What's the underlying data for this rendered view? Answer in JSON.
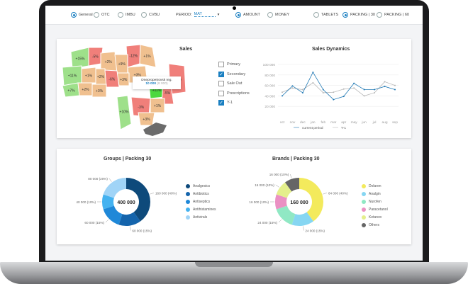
{
  "toolbar": {
    "segments": [
      {
        "label": "General",
        "selected": true
      },
      {
        "label": "OTC",
        "selected": false
      },
      {
        "label": "IMBU",
        "selected": false
      },
      {
        "label": "CVBU",
        "selected": false
      }
    ],
    "period_label": "PERIOD:",
    "period_value": "MAT",
    "measure": [
      {
        "label": "AMOUNT",
        "selected": true
      },
      {
        "label": "MONEY",
        "selected": false
      }
    ],
    "units": [
      {
        "label": "TABLETS",
        "selected": false
      },
      {
        "label": "PACKING | 30",
        "selected": true
      },
      {
        "label": "PACKING | 60",
        "selected": false
      }
    ]
  },
  "map": {
    "title": "Sales",
    "regions": [
      "+15%",
      "-5%",
      "-12%",
      "+1%",
      "+2%",
      "+9%",
      "+11%",
      "+1%",
      "+2%",
      "+3%",
      "+3%",
      "-6%",
      "-15%",
      "+7%",
      "+2%",
      "+3%",
      "+11%",
      "-5%",
      "+10%",
      "-3%",
      "+1%",
      "+3%"
    ],
    "colors": {
      "positive": "#f0c08f",
      "strong_positive": "#9ee08a",
      "highlight": "#4dd83e",
      "negative": "#f07f7a",
      "none": "#6b6b6b"
    },
    "tooltip": {
      "region": "Dnepropetrovsk reg.",
      "value": "10 000",
      "prev": "(8 000)"
    }
  },
  "dynamics": {
    "title": "Sales Dynamics",
    "filters": [
      {
        "label": "Primary",
        "checked": false
      },
      {
        "label": "Secondary",
        "checked": true
      },
      {
        "label": "Sale Out",
        "checked": false
      },
      {
        "label": "Prescriptions",
        "checked": false
      },
      {
        "label": "Y-1",
        "checked": true
      }
    ]
  },
  "chart_data": [
    {
      "type": "line",
      "title": "Sales Dynamics",
      "categories": [
        "oct",
        "nov",
        "dec",
        "jan",
        "feb",
        "mar",
        "apr",
        "may",
        "jun",
        "jul",
        "aug",
        "sep"
      ],
      "ylim": [
        0,
        100000
      ],
      "yticks": [
        "100 000",
        "80 000",
        "60 000",
        "40 000",
        "20 000"
      ],
      "grid": true,
      "legend": "bottom",
      "series": [
        {
          "name": "current period",
          "color": "#1f78b4",
          "values": [
            40000,
            59000,
            46000,
            85000,
            52000,
            33000,
            39000,
            64000,
            52000,
            52000,
            58000,
            52000
          ]
        },
        {
          "name": "Y-1",
          "color": "#b8b8b8",
          "values": [
            47000,
            55000,
            52000,
            65000,
            46000,
            47000,
            53000,
            55000,
            40000,
            46000,
            67000,
            60000
          ]
        }
      ]
    },
    {
      "type": "pie",
      "title": "Groups | Packing 30",
      "total": "400 000",
      "legend": "right",
      "slices": [
        {
          "name": "Analgesics",
          "value": 160000,
          "label": "160 000 (40%)",
          "color": "#0e4a7b"
        },
        {
          "name": "Antibiotics",
          "value": 60000,
          "label": "60 000 (15%)",
          "color": "#1464ac"
        },
        {
          "name": "Antiseptics",
          "value": 60000,
          "label": "60 000 (15%)",
          "color": "#1f88d8"
        },
        {
          "name": "Antihistamines",
          "value": 40000,
          "label": "40 000 (10%)",
          "color": "#44b2f0"
        },
        {
          "name": "Antivirals",
          "value": 80000,
          "label": "80 000 (20%)",
          "color": "#a0d4f7"
        }
      ]
    },
    {
      "type": "pie",
      "title": "Brands | Packing 30",
      "total": "160 000",
      "legend": "right",
      "slices": [
        {
          "name": "Dolaren",
          "value": 64000,
          "label": "64 000 (40%)",
          "color": "#f3ea5c"
        },
        {
          "name": "Analgin",
          "value": 24000,
          "label": "24 000 (15%)",
          "color": "#86d6f2"
        },
        {
          "name": "Nurofen",
          "value": 24000,
          "label": "24 000 (15%)",
          "color": "#90e8c4"
        },
        {
          "name": "Paracetanol",
          "value": 16000,
          "label": "16 000 (10%)",
          "color": "#ea90c3"
        },
        {
          "name": "Ketanov",
          "value": 16000,
          "label": "16 000 (10%)",
          "color": "#e4ef8c"
        },
        {
          "name": "Others",
          "value": 16000,
          "label": "16 000 (10%)",
          "color": "#666666"
        }
      ]
    }
  ]
}
